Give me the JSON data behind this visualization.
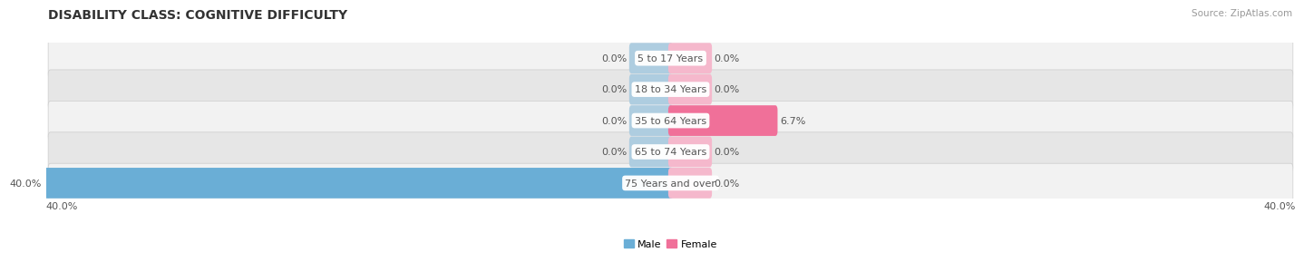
{
  "title": "DISABILITY CLASS: COGNITIVE DIFFICULTY",
  "source": "Source: ZipAtlas.com",
  "categories": [
    "5 to 17 Years",
    "18 to 34 Years",
    "35 to 64 Years",
    "65 to 74 Years",
    "75 Years and over"
  ],
  "male_values": [
    0.0,
    0.0,
    0.0,
    0.0,
    40.0
  ],
  "female_values": [
    0.0,
    0.0,
    6.7,
    0.0,
    0.0
  ],
  "male_color": "#6aaed6",
  "female_color": "#f07099",
  "male_color_light": "#aecde0",
  "female_color_light": "#f5b8cc",
  "row_bg_light": "#f2f2f2",
  "row_bg_dark": "#e6e6e6",
  "row_border_color": "#cccccc",
  "max_value": 40.0,
  "label_color": "#555555",
  "title_color": "#333333",
  "title_fontsize": 10,
  "label_fontsize": 8,
  "category_fontsize": 8,
  "axis_label_fontsize": 8,
  "x_min": -40.0,
  "x_max": 40.0,
  "stub_size": 2.5
}
